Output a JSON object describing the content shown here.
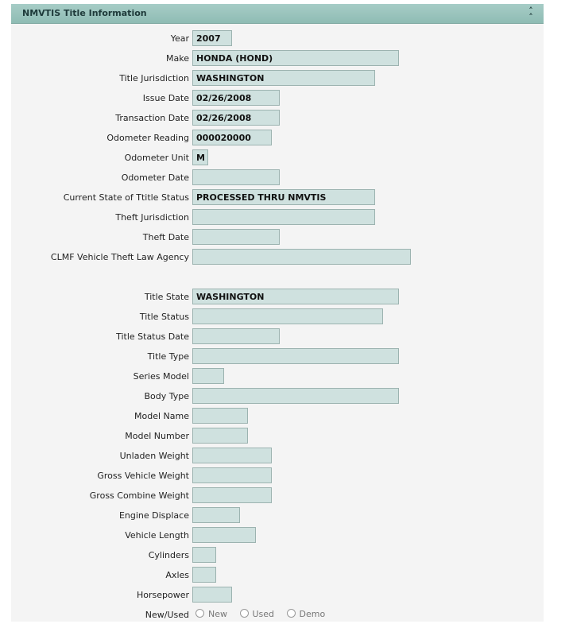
{
  "panel": {
    "title": "NMVTIS Title Information",
    "collapse_icon": "double-chevron-up-icon"
  },
  "fields": [
    {
      "label": "Year",
      "value": "2007"
    },
    {
      "label": "Make",
      "value": "HONDA (HOND)"
    },
    {
      "label": "Title Jurisdiction",
      "value": "WASHINGTON"
    },
    {
      "label": "Issue Date",
      "value": "02/26/2008"
    },
    {
      "label": "Transaction Date",
      "value": "02/26/2008"
    },
    {
      "label": "Odometer Reading",
      "value": "000020000"
    },
    {
      "label": "Odometer Unit",
      "value": "M"
    },
    {
      "label": "Odometer Date",
      "value": ""
    },
    {
      "label": "Current State of Ttitle Status",
      "value": "PROCESSED THRU NMVTIS"
    },
    {
      "label": "Theft Jurisdiction",
      "value": ""
    },
    {
      "label": "Theft Date",
      "value": ""
    },
    {
      "label": "CLMF Vehicle Theft Law Agency",
      "value": ""
    },
    {
      "label": "Title State",
      "value": "WASHINGTON"
    },
    {
      "label": "Title Status",
      "value": ""
    },
    {
      "label": "Title Status Date",
      "value": ""
    },
    {
      "label": "Title Type",
      "value": ""
    },
    {
      "label": "Series Model",
      "value": ""
    },
    {
      "label": "Body Type",
      "value": ""
    },
    {
      "label": "Model Name",
      "value": ""
    },
    {
      "label": "Model Number",
      "value": ""
    },
    {
      "label": "Unladen Weight",
      "value": ""
    },
    {
      "label": "Gross Vehicle Weight",
      "value": ""
    },
    {
      "label": "Gross Combine Weight",
      "value": ""
    },
    {
      "label": "Engine Displace",
      "value": ""
    },
    {
      "label": "Vehicle Length",
      "value": ""
    },
    {
      "label": "Cylinders",
      "value": ""
    },
    {
      "label": "Axles",
      "value": ""
    },
    {
      "label": "Horsepower",
      "value": ""
    }
  ],
  "new_used": {
    "label": "New/Used",
    "options": [
      "New",
      "Used",
      "Demo"
    ]
  }
}
